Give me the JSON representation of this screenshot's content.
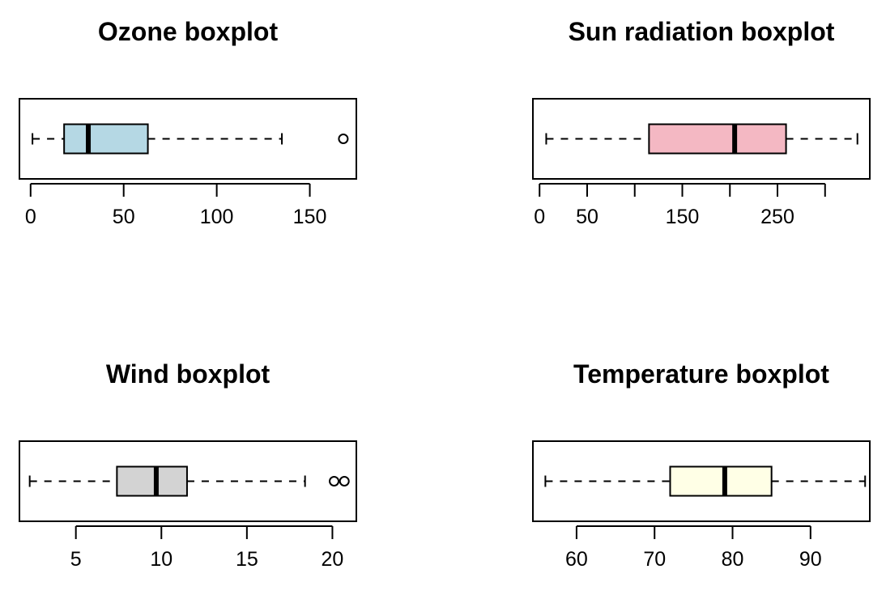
{
  "chart_data": [
    {
      "type": "boxplot",
      "orientation": "horizontal",
      "title": "Ozone boxplot",
      "fill": "#b5d8e4",
      "stats": {
        "whisker_low": 1,
        "q1": 18,
        "median": 31,
        "q3": 63,
        "whisker_high": 135
      },
      "outliers": [
        168
      ],
      "xlim": [
        -6,
        175
      ],
      "ticks": [
        0,
        50,
        100,
        150
      ],
      "tick_labels": [
        "0",
        "50",
        "100",
        "150"
      ]
    },
    {
      "type": "boxplot",
      "orientation": "horizontal",
      "title": "Sun radiation boxplot",
      "fill": "#f4b8c3",
      "stats": {
        "whisker_low": 7,
        "q1": 115,
        "median": 205,
        "q3": 259,
        "whisker_high": 334
      },
      "outliers": [],
      "xlim": [
        -7,
        347
      ],
      "ticks": [
        0,
        50,
        100,
        150,
        200,
        250,
        300
      ],
      "tick_labels": [
        "0",
        "50",
        "",
        "150",
        "",
        "250",
        ""
      ]
    },
    {
      "type": "boxplot",
      "orientation": "horizontal",
      "title": "Wind boxplot",
      "fill": "#d3d3d3",
      "stats": {
        "whisker_low": 2.3,
        "q1": 7.4,
        "median": 9.7,
        "q3": 11.5,
        "whisker_high": 18.4
      },
      "outliers": [
        20.1,
        20.7
      ],
      "xlim": [
        1.7,
        21.4
      ],
      "ticks": [
        5,
        10,
        15,
        20
      ],
      "tick_labels": [
        "5",
        "10",
        "15",
        "20"
      ]
    },
    {
      "type": "boxplot",
      "orientation": "horizontal",
      "title": "Temperature boxplot",
      "fill": "#ffffe6",
      "stats": {
        "whisker_low": 56,
        "q1": 72,
        "median": 79,
        "q3": 85,
        "whisker_high": 97
      },
      "outliers": [],
      "xlim": [
        54.4,
        97.6
      ],
      "ticks": [
        60,
        70,
        80,
        90
      ],
      "tick_labels": [
        "60",
        "70",
        "80",
        "90"
      ]
    }
  ]
}
